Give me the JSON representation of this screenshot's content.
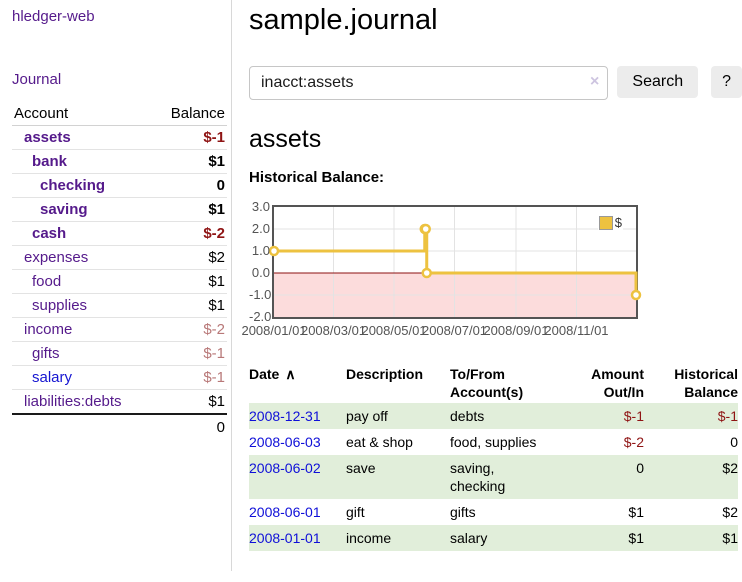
{
  "app": {
    "brand": "hledger-web"
  },
  "sidebar": {
    "journal_label": "Journal",
    "accounts": {
      "headers": {
        "account": "Account",
        "balance": "Balance"
      },
      "rows": [
        {
          "name": "assets",
          "balance": "$-1",
          "depth": 1,
          "bold": true,
          "balance_color": "dark-red",
          "link_color": "purple"
        },
        {
          "name": "bank",
          "balance": "$1",
          "depth": 2,
          "bold": true,
          "balance_color": "black",
          "link_color": "purple"
        },
        {
          "name": "checking",
          "balance": "0",
          "depth": 3,
          "bold": true,
          "balance_color": "black",
          "link_color": "purple"
        },
        {
          "name": "saving",
          "balance": "$1",
          "depth": 3,
          "bold": true,
          "balance_color": "black",
          "link_color": "purple"
        },
        {
          "name": "cash",
          "balance": "$-2",
          "depth": 2,
          "bold": true,
          "balance_color": "dark-red",
          "link_color": "purple"
        },
        {
          "name": "expenses",
          "balance": "$2",
          "depth": 1,
          "bold": false,
          "balance_color": "black",
          "link_color": "purple"
        },
        {
          "name": "food",
          "balance": "$1",
          "depth": 2,
          "bold": false,
          "balance_color": "black",
          "link_color": "purple"
        },
        {
          "name": "supplies",
          "balance": "$1",
          "depth": 2,
          "bold": false,
          "balance_color": "black",
          "link_color": "purple"
        },
        {
          "name": "income",
          "balance": "$-2",
          "depth": 1,
          "bold": false,
          "balance_color": "rose",
          "link_color": "purple"
        },
        {
          "name": "gifts",
          "balance": "$-1",
          "depth": 2,
          "bold": false,
          "balance_color": "rose",
          "link_color": "purple"
        },
        {
          "name": "salary",
          "balance": "$-1",
          "depth": 2,
          "bold": false,
          "balance_color": "rose",
          "link_color": "blue"
        },
        {
          "name": "liabilities:debts",
          "balance": "$1",
          "depth": 1,
          "bold": false,
          "balance_color": "black",
          "link_color": "purple"
        }
      ],
      "total": "0"
    }
  },
  "main": {
    "title": "sample.journal",
    "search": {
      "value": "inacct:assets",
      "clear_icon": "×",
      "button_label": "Search",
      "help_label": "?"
    },
    "account_heading": "assets"
  },
  "chart_data": {
    "type": "line",
    "title": "Historical Balance:",
    "step": true,
    "xlim": [
      "2008-01-01",
      "2008-12-31"
    ],
    "ylim": [
      -2,
      3
    ],
    "x_ticks": [
      "2008/01/01",
      "2008/03/01",
      "2008/05/01",
      "2008/07/01",
      "2008/09/01",
      "2008/11/01"
    ],
    "y_ticks": [
      "3.0",
      "2.0",
      "1.0",
      "0.0",
      "-1.0",
      "-2.0"
    ],
    "series": [
      {
        "name": "$",
        "color": "#edc240",
        "points": [
          [
            "2008-01-01",
            1
          ],
          [
            "2008-06-01",
            2
          ],
          [
            "2008-06-02",
            2
          ],
          [
            "2008-06-03",
            0
          ],
          [
            "2008-12-31",
            -1
          ]
        ]
      }
    ],
    "legend": {
      "label": "$",
      "position": "top-right"
    },
    "grid": {
      "color": "#e3e3e3",
      "border_color": "#545454",
      "zero_line_color": "#8b1010",
      "negative_region_color": "#fcdcdc",
      "tick_label_color": "#545454"
    }
  },
  "register": {
    "columns": [
      {
        "lines": [
          "Date"
        ],
        "sort_icon": "∧",
        "align": "left"
      },
      {
        "lines": [
          "Description"
        ],
        "align": "left"
      },
      {
        "lines": [
          "To/From",
          "Account(s)"
        ],
        "align": "left"
      },
      {
        "lines": [
          "Amount",
          "Out/In"
        ],
        "align": "right"
      },
      {
        "lines": [
          "Historical",
          "Balance"
        ],
        "align": "right"
      }
    ],
    "rows": [
      {
        "date": "2008-12-31",
        "description": "pay off",
        "accounts": "debts",
        "amount": "$-1",
        "balance": "$-1"
      },
      {
        "date": "2008-06-03",
        "description": "eat & shop",
        "accounts": "food, supplies",
        "amount": "$-2",
        "balance": "0"
      },
      {
        "date": "2008-06-02",
        "description": "save",
        "accounts": "saving, checking",
        "amount": "0",
        "balance": "$2"
      },
      {
        "date": "2008-06-01",
        "description": "gift",
        "accounts": "gifts",
        "amount": "$1",
        "balance": "$2"
      },
      {
        "date": "2008-01-01",
        "description": "income",
        "accounts": "salary",
        "amount": "$1",
        "balance": "$1"
      }
    ]
  }
}
